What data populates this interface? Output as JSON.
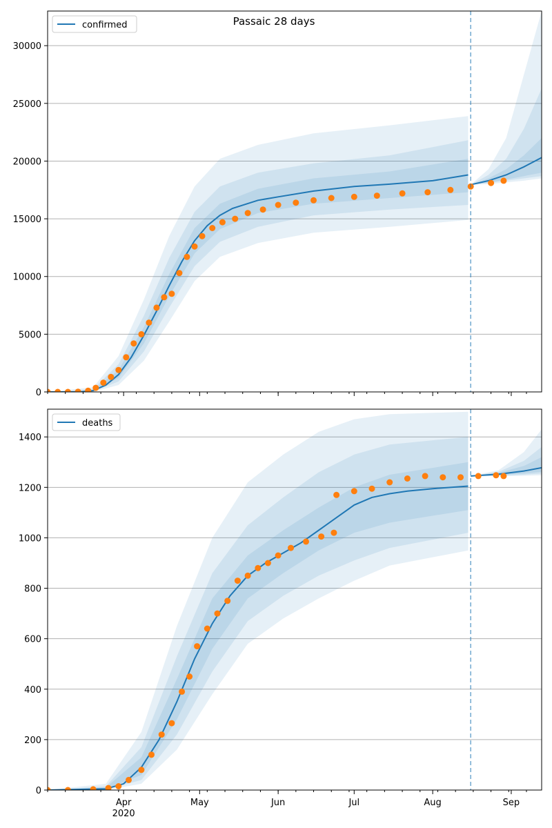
{
  "figure": {
    "title": "Passaic 28 days"
  },
  "chart_data": [
    {
      "type": "line",
      "name": "confirmed",
      "legend": {
        "labels": [
          "confirmed"
        ],
        "placement": "upper-left"
      },
      "x_start": "2020-03-02",
      "x_end": "2020-09-13",
      "forecast_start": "2020-08-16",
      "ylim": [
        0,
        33000
      ],
      "yticks": [
        0,
        5000,
        10000,
        15000,
        20000,
        25000,
        30000
      ],
      "xticks": [
        {
          "date": "2020-04-01",
          "label": "Apr",
          "sublabel": "2020"
        },
        {
          "date": "2020-05-01",
          "label": "May"
        },
        {
          "date": "2020-06-01",
          "label": "Jun"
        },
        {
          "date": "2020-07-01",
          "label": "Jul"
        },
        {
          "date": "2020-08-01",
          "label": "Aug"
        },
        {
          "date": "2020-09-01",
          "label": "Sep"
        }
      ],
      "grid": "y",
      "series": [
        {
          "name": "confirmed",
          "color": "#1f77b4",
          "x": [
            "2020-03-02",
            "2020-03-15",
            "2020-03-20",
            "2020-03-25",
            "2020-03-30",
            "2020-04-04",
            "2020-04-09",
            "2020-04-14",
            "2020-04-19",
            "2020-04-24",
            "2020-04-29",
            "2020-05-04",
            "2020-05-09",
            "2020-05-14",
            "2020-05-24",
            "2020-06-01",
            "2020-06-15",
            "2020-07-01",
            "2020-07-15",
            "2020-08-01",
            "2020-08-15"
          ],
          "y": [
            0,
            0,
            120,
            600,
            1500,
            3000,
            4900,
            7000,
            9200,
            11300,
            13100,
            14400,
            15300,
            15900,
            16600,
            16900,
            17400,
            17800,
            18000,
            18300,
            18800
          ]
        },
        {
          "name": "forecast",
          "color": "#1f77b4",
          "x": [
            "2020-08-16",
            "2020-08-23",
            "2020-08-30",
            "2020-09-06",
            "2020-09-13"
          ],
          "y": [
            17950,
            18300,
            18800,
            19500,
            20300
          ]
        },
        {
          "name": "band-inner",
          "color": "#1f77b4",
          "x": [
            "2020-03-02",
            "2020-03-20",
            "2020-03-30",
            "2020-04-09",
            "2020-04-19",
            "2020-04-29",
            "2020-05-09",
            "2020-05-24",
            "2020-06-15",
            "2020-07-15",
            "2020-08-15"
          ],
          "low": [
            0,
            80,
            1200,
            4200,
            8300,
            12000,
            14100,
            15500,
            16300,
            16800,
            17300
          ],
          "high": [
            0,
            160,
            1900,
            5600,
            10200,
            14200,
            16300,
            17600,
            18500,
            19100,
            20200
          ]
        },
        {
          "name": "band-middle",
          "color": "#1f77b4",
          "x": [
            "2020-03-02",
            "2020-03-20",
            "2020-03-30",
            "2020-04-09",
            "2020-04-19",
            "2020-04-29",
            "2020-05-09",
            "2020-05-24",
            "2020-06-15",
            "2020-07-15",
            "2020-08-15"
          ],
          "low": [
            0,
            50,
            900,
            3500,
            7300,
            10900,
            13000,
            14300,
            15300,
            15800,
            16200
          ],
          "high": [
            0,
            250,
            2400,
            6600,
            11600,
            15600,
            17800,
            19000,
            19800,
            20500,
            21800
          ]
        },
        {
          "name": "band-outer",
          "color": "#1f77b4",
          "x": [
            "2020-03-02",
            "2020-03-20",
            "2020-03-30",
            "2020-04-09",
            "2020-04-19",
            "2020-04-29",
            "2020-05-09",
            "2020-05-24",
            "2020-06-15",
            "2020-07-15",
            "2020-08-15"
          ],
          "low": [
            0,
            20,
            600,
            2700,
            6100,
            9600,
            11700,
            12900,
            13800,
            14300,
            14900
          ],
          "high": [
            0,
            400,
            3100,
            8000,
            13500,
            17800,
            20200,
            21400,
            22400,
            23100,
            23900
          ]
        },
        {
          "name": "forecast-band-inner",
          "color": "#1f77b4",
          "x": [
            "2020-08-16",
            "2020-08-23",
            "2020-08-30",
            "2020-09-06",
            "2020-09-13"
          ],
          "low": [
            17950,
            18150,
            18400,
            18700,
            19000
          ],
          "high": [
            17950,
            18500,
            19300,
            20500,
            22000
          ]
        },
        {
          "name": "forecast-band-middle",
          "color": "#1f77b4",
          "x": [
            "2020-08-16",
            "2020-08-23",
            "2020-08-30",
            "2020-09-06",
            "2020-09-13"
          ],
          "low": [
            17950,
            18100,
            18300,
            18500,
            18700
          ],
          "high": [
            17950,
            18800,
            20200,
            22800,
            26300
          ]
        },
        {
          "name": "forecast-band-outer",
          "color": "#1f77b4",
          "x": [
            "2020-08-16",
            "2020-08-23",
            "2020-08-30",
            "2020-09-06",
            "2020-09-13"
          ],
          "low": [
            17950,
            18000,
            18150,
            18300,
            18500
          ],
          "high": [
            17950,
            19300,
            22000,
            27500,
            33000
          ]
        }
      ],
      "observed": {
        "color": "#ff7f0e",
        "x": [
          "2020-03-02",
          "2020-03-06",
          "2020-03-10",
          "2020-03-14",
          "2020-03-18",
          "2020-03-21",
          "2020-03-24",
          "2020-03-27",
          "2020-03-30",
          "2020-04-02",
          "2020-04-05",
          "2020-04-08",
          "2020-04-11",
          "2020-04-14",
          "2020-04-17",
          "2020-04-20",
          "2020-04-23",
          "2020-04-26",
          "2020-04-29",
          "2020-05-02",
          "2020-05-06",
          "2020-05-10",
          "2020-05-15",
          "2020-05-20",
          "2020-05-26",
          "2020-06-01",
          "2020-06-08",
          "2020-06-15",
          "2020-06-22",
          "2020-07-01",
          "2020-07-10",
          "2020-07-20",
          "2020-07-30",
          "2020-08-08",
          "2020-08-16",
          "2020-08-24",
          "2020-08-29"
        ],
        "y": [
          0,
          0,
          0,
          20,
          100,
          350,
          800,
          1300,
          1900,
          3000,
          4200,
          5000,
          6000,
          7300,
          8200,
          8500,
          10300,
          11700,
          12600,
          13500,
          14200,
          14700,
          15000,
          15500,
          15800,
          16200,
          16400,
          16600,
          16800,
          16900,
          17000,
          17200,
          17300,
          17500,
          17800,
          18100,
          18300
        ]
      }
    },
    {
      "type": "line",
      "name": "deaths",
      "legend": {
        "labels": [
          "deaths"
        ],
        "placement": "upper-left"
      },
      "x_start": "2020-03-02",
      "x_end": "2020-09-13",
      "forecast_start": "2020-08-16",
      "ylim": [
        0,
        1510
      ],
      "yticks": [
        0,
        200,
        400,
        600,
        800,
        1000,
        1200,
        1400
      ],
      "xticks": [
        {
          "date": "2020-04-01",
          "label": "Apr",
          "sublabel": "2020"
        },
        {
          "date": "2020-05-01",
          "label": "May"
        },
        {
          "date": "2020-06-01",
          "label": "Jun"
        },
        {
          "date": "2020-07-01",
          "label": "Jul"
        },
        {
          "date": "2020-08-01",
          "label": "Aug"
        },
        {
          "date": "2020-09-01",
          "label": "Sep"
        }
      ],
      "grid": "y",
      "series": [
        {
          "name": "deaths",
          "color": "#1f77b4",
          "x": [
            "2020-03-02",
            "2020-03-25",
            "2020-04-01",
            "2020-04-08",
            "2020-04-15",
            "2020-04-22",
            "2020-04-29",
            "2020-05-06",
            "2020-05-13",
            "2020-05-20",
            "2020-05-27",
            "2020-06-03",
            "2020-06-10",
            "2020-06-17",
            "2020-06-24",
            "2020-07-01",
            "2020-07-08",
            "2020-07-15",
            "2020-07-22",
            "2020-08-01",
            "2020-08-15"
          ],
          "y": [
            0,
            5,
            25,
            90,
            200,
            350,
            520,
            660,
            770,
            850,
            900,
            940,
            980,
            1030,
            1080,
            1130,
            1160,
            1175,
            1185,
            1195,
            1205
          ]
        },
        {
          "name": "forecast",
          "color": "#1f77b4",
          "x": [
            "2020-08-16",
            "2020-08-27",
            "2020-09-06",
            "2020-09-13"
          ],
          "y": [
            1245,
            1252,
            1265,
            1278
          ]
        },
        {
          "name": "band-inner",
          "color": "#1f77b4",
          "x": [
            "2020-03-02",
            "2020-03-25",
            "2020-04-08",
            "2020-04-22",
            "2020-05-06",
            "2020-05-20",
            "2020-06-03",
            "2020-06-17",
            "2020-07-01",
            "2020-07-15",
            "2020-08-15"
          ],
          "low": [
            0,
            3,
            60,
            280,
            560,
            760,
            860,
            950,
            1020,
            1060,
            1110
          ],
          "high": [
            0,
            10,
            130,
            440,
            760,
            930,
            1030,
            1120,
            1200,
            1250,
            1300
          ]
        },
        {
          "name": "band-middle",
          "color": "#1f77b4",
          "x": [
            "2020-03-02",
            "2020-03-25",
            "2020-04-08",
            "2020-04-22",
            "2020-05-06",
            "2020-05-20",
            "2020-06-03",
            "2020-06-17",
            "2020-07-01",
            "2020-07-15",
            "2020-08-15"
          ],
          "low": [
            0,
            1,
            40,
            220,
            470,
            670,
            770,
            850,
            910,
            960,
            1020
          ],
          "high": [
            0,
            15,
            170,
            530,
            860,
            1050,
            1160,
            1260,
            1330,
            1370,
            1400
          ]
        },
        {
          "name": "band-outer",
          "color": "#1f77b4",
          "x": [
            "2020-03-02",
            "2020-03-25",
            "2020-04-08",
            "2020-04-22",
            "2020-05-06",
            "2020-05-20",
            "2020-06-03",
            "2020-06-17",
            "2020-07-01",
            "2020-07-15",
            "2020-08-15"
          ],
          "low": [
            0,
            0,
            25,
            160,
            380,
            580,
            680,
            760,
            830,
            890,
            950
          ],
          "high": [
            0,
            25,
            230,
            650,
            1000,
            1220,
            1330,
            1420,
            1470,
            1490,
            1500
          ]
        },
        {
          "name": "forecast-band-inner",
          "color": "#1f77b4",
          "x": [
            "2020-08-16",
            "2020-08-27",
            "2020-09-06",
            "2020-09-13"
          ],
          "low": [
            1245,
            1248,
            1255,
            1262
          ],
          "high": [
            1245,
            1258,
            1285,
            1320
          ]
        },
        {
          "name": "forecast-band-middle",
          "color": "#1f77b4",
          "x": [
            "2020-08-16",
            "2020-08-27",
            "2020-09-06",
            "2020-09-13"
          ],
          "low": [
            1245,
            1246,
            1250,
            1255
          ],
          "high": [
            1245,
            1262,
            1305,
            1360
          ]
        },
        {
          "name": "forecast-band-outer",
          "color": "#1f77b4",
          "x": [
            "2020-08-16",
            "2020-08-27",
            "2020-09-06",
            "2020-09-13"
          ],
          "low": [
            1245,
            1244,
            1246,
            1248
          ],
          "high": [
            1245,
            1268,
            1340,
            1430
          ]
        }
      ],
      "observed": {
        "color": "#ff7f0e",
        "x": [
          "2020-03-02",
          "2020-03-10",
          "2020-03-20",
          "2020-03-26",
          "2020-03-30",
          "2020-04-03",
          "2020-04-08",
          "2020-04-12",
          "2020-04-16",
          "2020-04-20",
          "2020-04-24",
          "2020-04-27",
          "2020-04-30",
          "2020-05-04",
          "2020-05-08",
          "2020-05-12",
          "2020-05-16",
          "2020-05-20",
          "2020-05-24",
          "2020-05-28",
          "2020-06-01",
          "2020-06-06",
          "2020-06-12",
          "2020-06-18",
          "2020-06-23",
          "2020-06-24",
          "2020-07-01",
          "2020-07-08",
          "2020-07-15",
          "2020-07-22",
          "2020-07-29",
          "2020-08-05",
          "2020-08-12",
          "2020-08-19",
          "2020-08-26",
          "2020-08-29"
        ],
        "y": [
          0,
          0,
          3,
          8,
          15,
          40,
          80,
          140,
          220,
          265,
          390,
          450,
          570,
          640,
          700,
          750,
          830,
          850,
          880,
          900,
          930,
          960,
          985,
          1005,
          1020,
          1170,
          1185,
          1195,
          1220,
          1235,
          1245,
          1240,
          1240,
          1245,
          1248,
          1245
        ]
      }
    }
  ]
}
